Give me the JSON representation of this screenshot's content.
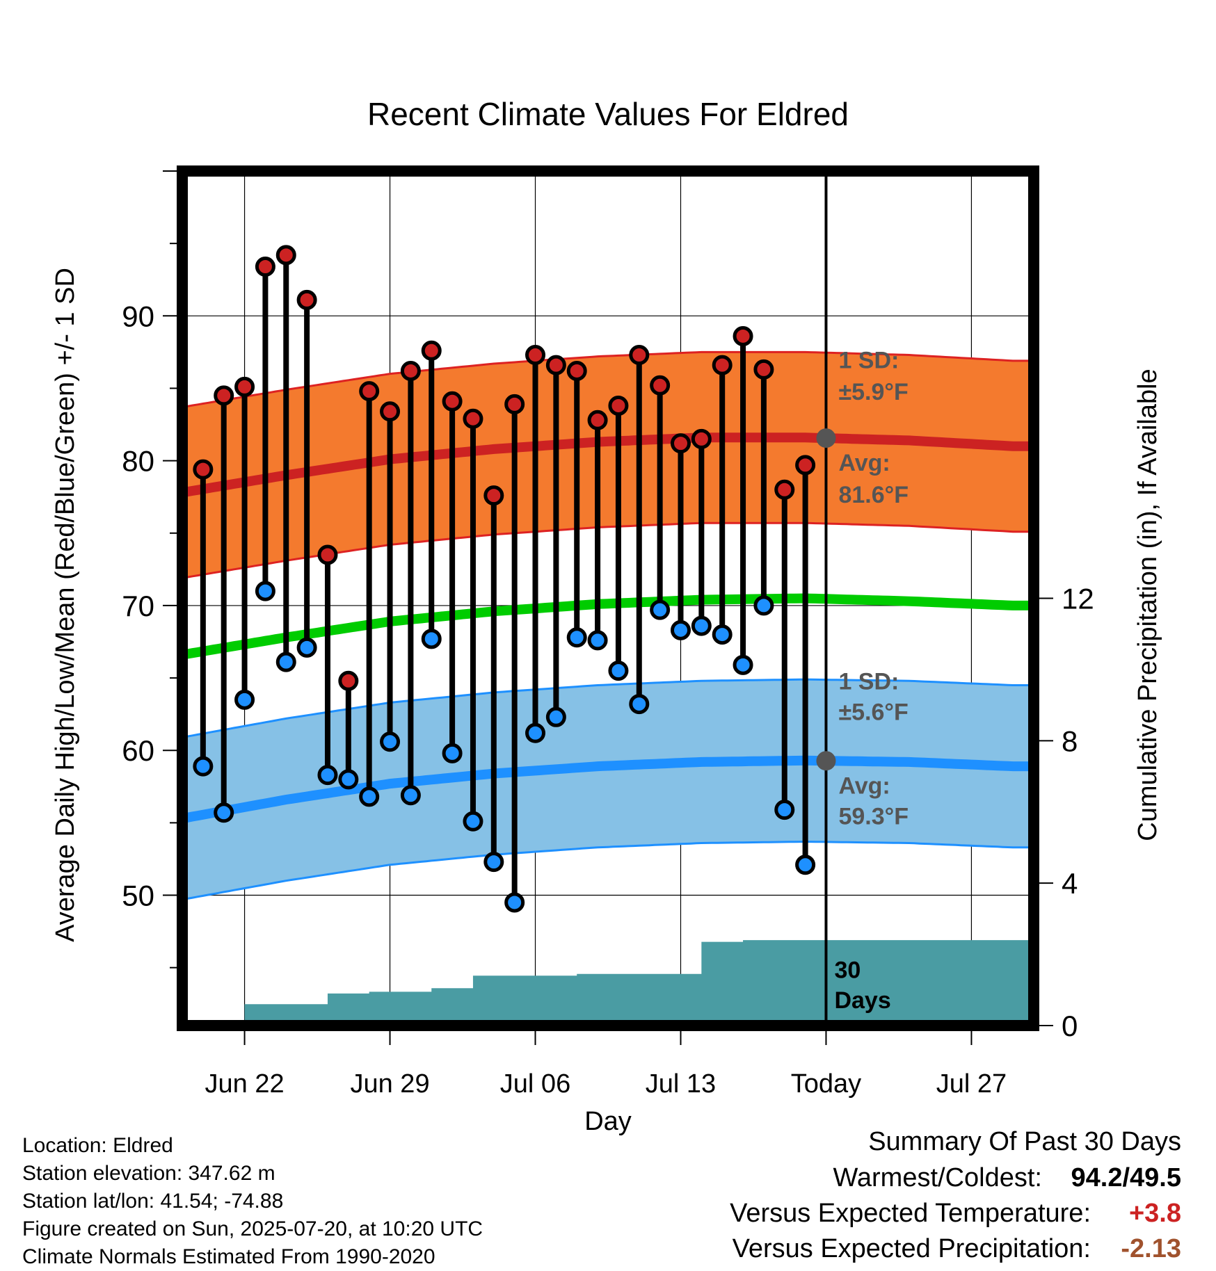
{
  "chart_data": {
    "type": "line",
    "title": "Recent Climate Values For Eldred",
    "xlabel": "Day",
    "ylabel_left": "Average Daily High/Low/Mean (Red/Blue/Green) +/- 1 SD",
    "ylabel_right": "Cumulative Precipitation (in), If Available",
    "x_tick_labels": [
      "Jun 22",
      "Jun 29",
      "Jul 06",
      "Jul 13",
      "Today",
      "Jul 27"
    ],
    "x_tick_dates": [
      "2025-06-22",
      "2025-06-29",
      "2025-07-06",
      "2025-07-13",
      "2025-07-20",
      "2025-07-27"
    ],
    "xlim": [
      "2025-06-19",
      "2025-07-30"
    ],
    "today": "2025-07-20",
    "ylim_left": [
      41,
      100
    ],
    "yticks_left": [
      "50",
      "60",
      "70",
      "80",
      "90"
    ],
    "ylim_right": [
      0,
      24
    ],
    "yticks_right": [
      "0",
      "4",
      "8",
      "12"
    ],
    "grid": true,
    "colors": {
      "high": "#cc2222",
      "low": "#1e90ff",
      "mean": "#00cc00",
      "high_band": "#f47a2e",
      "high_band_edge": "#dd2222",
      "low_band": "#86c1e6",
      "low_band_edge": "#1e90ff",
      "precip": "#4a9ca3",
      "avg_marker": "#555555",
      "annotation": "#555555",
      "positive": "#cc2222",
      "negative": "#a0522d"
    },
    "observations": {
      "dates": [
        "2025-06-20",
        "2025-06-21",
        "2025-06-22",
        "2025-06-23",
        "2025-06-24",
        "2025-06-25",
        "2025-06-26",
        "2025-06-27",
        "2025-06-28",
        "2025-06-29",
        "2025-06-30",
        "2025-07-01",
        "2025-07-02",
        "2025-07-03",
        "2025-07-04",
        "2025-07-05",
        "2025-07-06",
        "2025-07-07",
        "2025-07-08",
        "2025-07-09",
        "2025-07-10",
        "2025-07-11",
        "2025-07-12",
        "2025-07-13",
        "2025-07-14",
        "2025-07-15",
        "2025-07-16",
        "2025-07-17",
        "2025-07-18",
        "2025-07-19"
      ],
      "high": [
        79.4,
        84.5,
        85.1,
        93.4,
        94.2,
        91.1,
        73.5,
        64.8,
        84.8,
        83.4,
        86.2,
        87.6,
        84.1,
        82.9,
        77.6,
        83.9,
        87.3,
        86.6,
        86.2,
        82.8,
        83.8,
        87.3,
        85.2,
        81.2,
        81.5,
        86.6,
        88.6,
        86.3,
        78.0,
        79.7
      ],
      "low": [
        58.9,
        55.7,
        63.5,
        71.0,
        66.1,
        67.1,
        58.3,
        58.0,
        56.8,
        60.6,
        56.9,
        67.7,
        59.8,
        55.1,
        52.3,
        49.5,
        61.2,
        62.3,
        67.8,
        67.6,
        65.5,
        63.2,
        69.7,
        68.3,
        68.6,
        68.0,
        65.9,
        70.0,
        55.9,
        52.1
      ]
    },
    "normals": {
      "dates": [
        "2025-06-19",
        "2025-06-24",
        "2025-06-29",
        "2025-07-04",
        "2025-07-09",
        "2025-07-14",
        "2025-07-19",
        "2025-07-24",
        "2025-07-29"
      ],
      "high_avg": [
        77.8,
        79.0,
        80.1,
        80.8,
        81.3,
        81.6,
        81.6,
        81.4,
        81.0
      ],
      "low_avg": [
        55.3,
        56.6,
        57.7,
        58.4,
        58.9,
        59.2,
        59.3,
        59.2,
        58.9
      ],
      "mean_avg": [
        66.6,
        67.8,
        68.9,
        69.6,
        70.1,
        70.4,
        70.5,
        70.3,
        70.0
      ],
      "high_sd": 5.9,
      "low_sd": 5.6
    },
    "precipitation": {
      "dates": [
        "2025-06-21",
        "2025-06-22",
        "2025-06-23",
        "2025-06-24",
        "2025-06-25",
        "2025-06-26",
        "2025-06-27",
        "2025-06-28",
        "2025-06-29",
        "2025-06-30",
        "2025-07-01",
        "2025-07-02",
        "2025-07-03",
        "2025-07-04",
        "2025-07-05",
        "2025-07-06",
        "2025-07-07",
        "2025-07-08",
        "2025-07-09",
        "2025-07-10",
        "2025-07-11",
        "2025-07-12",
        "2025-07-13",
        "2025-07-14",
        "2025-07-15",
        "2025-07-16",
        "2025-07-17",
        "2025-07-18",
        "2025-07-19",
        "2025-07-20"
      ],
      "cumulative": [
        0.0,
        0.6,
        0.6,
        0.6,
        0.6,
        0.9,
        0.9,
        0.95,
        0.95,
        0.95,
        1.05,
        1.05,
        1.4,
        1.4,
        1.4,
        1.4,
        1.4,
        1.45,
        1.45,
        1.45,
        1.45,
        1.45,
        1.45,
        2.35,
        2.35,
        2.4,
        2.4,
        2.4,
        2.4,
        2.4
      ],
      "forward_fill": 2.4
    },
    "annotations": {
      "high_sd_label": "1 SD:",
      "high_sd_value": "±5.9°F",
      "high_avg_label": "Avg:",
      "high_avg_value": "81.6°F",
      "low_sd_label": "1 SD:",
      "low_sd_value": "±5.6°F",
      "low_avg_label": "Avg:",
      "low_avg_value": "59.3°F",
      "days_number": "30",
      "days_word": "Days"
    }
  },
  "info": {
    "location": "Location: Eldred",
    "elevation": "Station elevation: 347.62 m",
    "latlon": "Station lat/lon: 41.54; -74.88",
    "created": "Figure created on Sun, 2025-07-20, at 10:20 UTC",
    "normals": "Climate Normals Estimated From 1990-2020"
  },
  "summary": {
    "title": "Summary Of Past 30 Days",
    "warmest_label": "Warmest/Coldest:",
    "warmest_value": "94.2/49.5",
    "temp_label": "Versus Expected Temperature:",
    "temp_value": "+3.8",
    "precip_label": "Versus Expected Precipitation:",
    "precip_value": "-2.13"
  }
}
